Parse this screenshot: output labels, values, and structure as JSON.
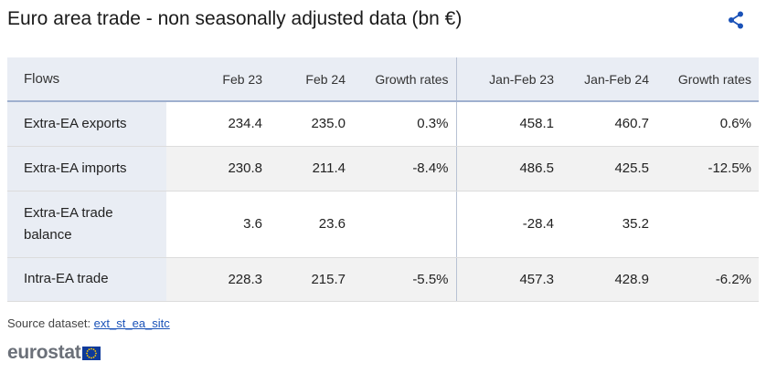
{
  "title": "Euro area trade - non seasonally adjusted data (bn €)",
  "share_icon": "share-icon",
  "colors": {
    "header_bg": "#e9edf4",
    "header_border": "#9fb0cf",
    "flag_blue": "#0d3a9a",
    "flag_star": "#ffcc00",
    "link": "#1a52b8"
  },
  "table": {
    "headers": [
      "Flows",
      "Feb 23",
      "Feb 24",
      "Growth rates",
      "Jan-Feb 23",
      "Jan-Feb 24",
      "Growth rates"
    ],
    "rows": [
      {
        "flow": "Extra-EA exports",
        "feb23": "234.4",
        "feb24": "235.0",
        "growth1": "0.3%",
        "janfeb23": "458.1",
        "janfeb24": "460.7",
        "growth2": "0.6%"
      },
      {
        "flow": "Extra-EA imports",
        "feb23": "230.8",
        "feb24": "211.4",
        "growth1": "-8.4%",
        "janfeb23": "486.5",
        "janfeb24": "425.5",
        "growth2": "-12.5%"
      },
      {
        "flow": "Extra-EA trade balance",
        "feb23": "3.6",
        "feb24": "23.6",
        "growth1": "",
        "janfeb23": "-28.4",
        "janfeb24": "35.2",
        "growth2": ""
      },
      {
        "flow": "Intra-EA trade",
        "feb23": "228.3",
        "feb24": "215.7",
        "growth1": "-5.5%",
        "janfeb23": "457.3",
        "janfeb24": "428.9",
        "growth2": "-6.2%"
      }
    ]
  },
  "source": {
    "label": "Source dataset: ",
    "link_text": "ext_st_ea_sitc"
  },
  "logo": {
    "text": "eurostat"
  }
}
